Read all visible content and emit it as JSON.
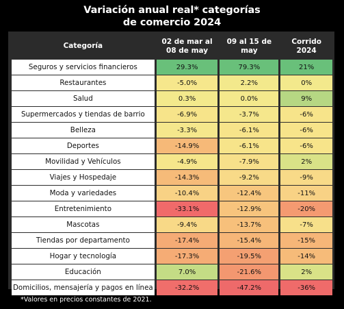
{
  "title_line1": "Variación anual real* categorías",
  "title_line2": "de comercio 2024",
  "headers": {
    "category": "Categoría",
    "col1": "02 de mar al 08 de may",
    "col2": "09 al 15 de may",
    "col3": "Corrido 2024"
  },
  "footnote": "*Valores en precios constantes de 2021.",
  "chart_data": {
    "type": "table",
    "title": "Variación anual real* categorías de comercio 2024",
    "columns": [
      "Categoría",
      "02 de mar al 08 de may",
      "09 al 15 de may",
      "Corrido 2024"
    ],
    "rows": [
      {
        "category": "Seguros y servicios financieros",
        "values": [
          "29.3%",
          "79.3%",
          "21%"
        ],
        "colors": [
          "#69c07a",
          "#69c07a",
          "#69c07a"
        ]
      },
      {
        "category": "Restaurantes",
        "values": [
          "-5.0%",
          "2.2%",
          "0%"
        ],
        "colors": [
          "#f6e78c",
          "#f3e98c",
          "#f3e98c"
        ]
      },
      {
        "category": "Salud",
        "values": [
          "0.3%",
          "0.0%",
          "9%"
        ],
        "colors": [
          "#f3e98c",
          "#f4e98c",
          "#b6d783"
        ]
      },
      {
        "category": "Supermercados y tiendas de barrio",
        "values": [
          "-6.9%",
          "-3.7%",
          "-6%"
        ],
        "colors": [
          "#f7e48a",
          "#f5e78c",
          "#f7e48a"
        ]
      },
      {
        "category": "Belleza",
        "values": [
          "-3.3%",
          "-6.1%",
          "-6%"
        ],
        "colors": [
          "#f5e78c",
          "#f7e48a",
          "#f7e48a"
        ]
      },
      {
        "category": "Deportes",
        "values": [
          "-14.9%",
          "-6.1%",
          "-6%"
        ],
        "colors": [
          "#f6b978",
          "#f7e48a",
          "#f7e48a"
        ]
      },
      {
        "category": "Movilidad y Vehículos",
        "values": [
          "-4.9%",
          "-7.9%",
          "2%"
        ],
        "colors": [
          "#f6e68b",
          "#f7e08a",
          "#d9e287"
        ]
      },
      {
        "category": "Viajes y Hospedaje",
        "values": [
          "-14.3%",
          "-9.2%",
          "-9%"
        ],
        "colors": [
          "#f6bb79",
          "#f8da88",
          "#f8da88"
        ]
      },
      {
        "category": "Moda y variedades",
        "values": [
          "-10.4%",
          "-12.4%",
          "-11%"
        ],
        "colors": [
          "#f8d285",
          "#f7c67e",
          "#f8d285"
        ]
      },
      {
        "category": "Entretenimiento",
        "values": [
          "-33.1%",
          "-12.9%",
          "-20%"
        ],
        "colors": [
          "#f06a6a",
          "#f7c47d",
          "#f49a71"
        ]
      },
      {
        "category": "Mascotas",
        "values": [
          "-9.4%",
          "-13.7%",
          "-7%"
        ],
        "colors": [
          "#f8d987",
          "#f7c07b",
          "#f7e08a"
        ]
      },
      {
        "category": "Tiendas por departamento",
        "values": [
          "-17.4%",
          "-15.4%",
          "-15%"
        ],
        "colors": [
          "#f5ab75",
          "#f6b678",
          "#f6b678"
        ]
      },
      {
        "category": "Hogar y tecnología",
        "values": [
          "-17.3%",
          "-19.5%",
          "-14%"
        ],
        "colors": [
          "#f5ac75",
          "#f4a072",
          "#f6bb79"
        ]
      },
      {
        "category": "Educación",
        "values": [
          "7.0%",
          "-21.6%",
          "2%"
        ],
        "colors": [
          "#c4dc85",
          "#f39770",
          "#d9e287"
        ]
      },
      {
        "category": "Domicilios, mensajería y pagos en línea",
        "values": [
          "-32.2%",
          "-47.2%",
          "-36%"
        ],
        "colors": [
          "#f06e6b",
          "#ee6a6a",
          "#ef6b6a"
        ]
      }
    ]
  }
}
